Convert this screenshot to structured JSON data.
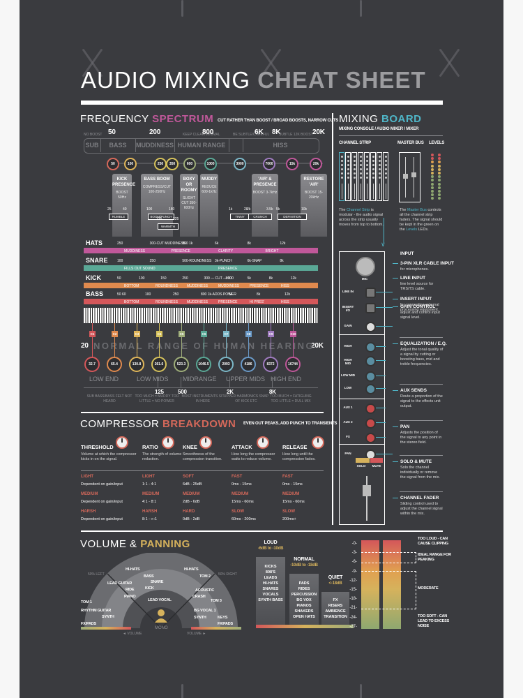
{
  "title": {
    "light": "AUDIO MIXING",
    "bold": "CHEAT SHEET"
  },
  "frequency_spectrum": {
    "title_light": "FREQUENCY",
    "title_bold": "SPECTRUM",
    "tagline": "CUT RATHER THAN BOOST  /  BROAD BOOSTS, NARROW CUTS",
    "top_markers": [
      {
        "note": "NO BOOST",
        "value": "50"
      },
      {
        "note": "",
        "value": "200"
      },
      {
        "note": "KEEP CLEAR/MINIMAL",
        "value": "800"
      },
      {
        "note": "BE SUBTLE/CAREFUL",
        "value": "6K"
      },
      {
        "note": "",
        "value": "8K"
      },
      {
        "note": "SUBTLE 12K BOOST",
        "value": "20K"
      }
    ],
    "ranges": [
      "SUB",
      "BASS",
      "MUDDINESS",
      "HUMAN RANGE",
      "",
      "HISS"
    ],
    "freq_circles": [
      {
        "label": "50",
        "color": "#d4685a"
      },
      {
        "label": "100",
        "color": "#e0b65a"
      },
      {
        "label": "250",
        "color": "#d6c25c"
      },
      {
        "label": "350",
        "color": "#d6c25c"
      },
      {
        "label": "600",
        "color": "#9fae7a"
      },
      {
        "label": "1000",
        "color": "#5aa896"
      },
      {
        "label": "3000",
        "color": "#7cb8c8"
      },
      {
        "label": "7000",
        "color": "#a07cc0"
      },
      {
        "label": "15k",
        "color": "#c0589a"
      },
      {
        "label": "20k",
        "color": "#c0589a"
      }
    ],
    "cards": [
      {
        "heading": "KICK PRESENCE",
        "desc": "BOOST 50Hz"
      },
      {
        "heading": "BASS BOOM",
        "desc": "COMPRESS/CUT 100-250Hz"
      },
      {
        "heading": "BOXY OR ROOMY",
        "desc": "SLIGHT CUT 350-600Hz"
      },
      {
        "heading": "MUDDY",
        "desc": "REDUCE 600-1kHz"
      },
      {
        "heading": "'AIR' & PRESENCE",
        "desc": "BOOST 3-7kHz"
      },
      {
        "heading": "RESTORE 'AIR'",
        "desc": "BOOST 15-20kHz"
      }
    ],
    "brackets": [
      {
        "label": "RUMBLE",
        "from": "25",
        "to": "40"
      },
      {
        "label": "BOOM/PUNCH",
        "from": "100",
        "to": "180"
      },
      {
        "label": "WARMTH",
        "from": "135",
        "to": "225"
      },
      {
        "label": "TINNY",
        "from": "1k",
        "to": "2k"
      },
      {
        "label": "CRUNCH",
        "from": "2k",
        "to": "3.5k"
      },
      {
        "label": "DEFINITION",
        "from": "5k",
        "to": "10k"
      }
    ],
    "instruments": [
      {
        "name": "HATS",
        "color": "#c0589a",
        "markers": [
          "250",
          "300-CUT MUDDINESS",
          "800 1k",
          "6k",
          "8k",
          "12k"
        ],
        "zones": [
          "MUDDINESS",
          "PRESENCE",
          "CLARITY",
          "BRIGHT"
        ]
      },
      {
        "name": "SNARE",
        "color": "#5aa896",
        "markers": [
          "100",
          "250",
          "500-ROUNDNESS",
          "3k-PUNCH",
          "6k-SNAP",
          "8k"
        ],
        "zones": [
          "FILLS OUT SOUND",
          "PRESENCE"
        ]
      },
      {
        "name": "KICK",
        "color": "#e08a4e",
        "markers": [
          "50",
          "100",
          "150",
          "250",
          "300 — CUT — 600",
          "800",
          "5k",
          "8k",
          "12k"
        ],
        "zones": [
          "BOTTOM",
          "ROUNDNESS",
          "MUDDINESS",
          "MUDDINESS",
          "PRESENCE",
          "HISS"
        ]
      },
      {
        "name": "BASS",
        "color": "#d4575a",
        "markers": [
          "50 60",
          "100",
          "250",
          "800 1k-ADDS POWER",
          "6k",
          "8k",
          "12k"
        ],
        "zones": [
          "BOTTOM",
          "ROUNDNESS",
          "MUDDINESS",
          "PRESENCE",
          "HI PRES'",
          "HISS"
        ]
      }
    ],
    "hearing": {
      "min": "20",
      "max": "20K",
      "label": "NORMAL RANGE OF HUMAN HEARING"
    },
    "notes": [
      {
        "note": "C1",
        "hz": "32.7",
        "color": "#d4575a"
      },
      {
        "note": "C2",
        "hz": "65.4",
        "color": "#e08a4e"
      },
      {
        "note": "C3",
        "hz": "130.8",
        "color": "#e0b65a"
      },
      {
        "note": "C4",
        "hz": "261.6",
        "color": "#d6c25c"
      },
      {
        "note": "C5",
        "hz": "523.3",
        "color": "#9fae7a"
      },
      {
        "note": "C6",
        "hz": "1046.5",
        "color": "#5aa896"
      },
      {
        "note": "C7",
        "hz": "2093",
        "color": "#7cb8c8"
      },
      {
        "note": "C8",
        "hz": "4186",
        "color": "#6a9ac8"
      },
      {
        "note": "C9",
        "hz": "8372",
        "color": "#a07cc0"
      },
      {
        "note": "C10",
        "hz": "16744",
        "color": "#c0589a"
      }
    ],
    "zones": [
      {
        "name": "LOW END",
        "desc": "SUB BASS/BASS FELT NOT HEARD"
      },
      {
        "name": "LOW MIDS",
        "desc": "TOO MUCH = MUDDY TOO LITTLE = NO POWER"
      },
      {
        "name": "MIDRANGE",
        "desc": "MOST INSTRUMENTS SIT IN HERE"
      },
      {
        "name": "UPPER MIDS",
        "desc": "UPPER HARMONICS SNAP OF KICK ETC"
      },
      {
        "name": "HIGH END",
        "desc": "TOO MUCH = FATIGUING TOO LITTLE = DULL MIX"
      }
    ],
    "zone_boundaries": [
      "125",
      "500",
      "2K",
      "8K"
    ]
  },
  "compressor": {
    "title_light": "COMPRESSOR",
    "title_bold": "BREAKDOWN",
    "tagline": "EVEN OUT PEAKS, ADD PUNCH TO TRANSIENTS",
    "params": [
      {
        "name": "THRESHOLD",
        "desc": "Volume at which the compressor kicks in on the signal.",
        "levels": [
          {
            "label": "LIGHT",
            "value": "Dependent on gain/input"
          },
          {
            "label": "MEDIUM",
            "value": "Dependent on gain/input"
          },
          {
            "label": "HARSH",
            "value": "Dependent on gain/input"
          }
        ]
      },
      {
        "name": "RATIO",
        "desc": "The strength of volume reduction.",
        "levels": [
          {
            "label": "LIGHT",
            "value": "1:1 - 4:1"
          },
          {
            "label": "MEDIUM",
            "value": "4:1 - 8:1"
          },
          {
            "label": "HARSH",
            "value": "8:1 - ∞:1"
          }
        ]
      },
      {
        "name": "KNEE",
        "desc": "Smoothness of the compression transition.",
        "levels": [
          {
            "label": "SOFT",
            "value": "6dB - 25dB"
          },
          {
            "label": "MEDIUM",
            "value": "2dB - 6dB"
          },
          {
            "label": "HARD",
            "value": "0dB - 2dB"
          }
        ]
      },
      {
        "name": "ATTACK",
        "desc": "How long the compressor waits to reduce volume.",
        "levels": [
          {
            "label": "FAST",
            "value": "0ms - 15ms"
          },
          {
            "label": "MEDIUM",
            "value": "15ms - 60ms"
          },
          {
            "label": "SLOW",
            "value": "60ms - 200ms"
          }
        ]
      },
      {
        "name": "RELEASE",
        "desc": "How long until the compression fades.",
        "levels": [
          {
            "label": "FAST",
            "value": "0ms - 15ms"
          },
          {
            "label": "MEDIUM",
            "value": "15ms - 60ms"
          },
          {
            "label": "SLOW",
            "value": "200ms+"
          }
        ]
      }
    ]
  },
  "volume_panning": {
    "title_light": "VOLUME &",
    "title_bold": "PANNING",
    "pan_labels": {
      "left": "50% LEFT",
      "right": "50% RIGHT",
      "mono": "MONO",
      "vol_left": "◄ VOLUME",
      "vol_right": "VOLUME ►"
    },
    "left_items": [
      "HI-HATS",
      "LEAD GUITAR",
      "RIDE",
      "PIANO",
      "TOM 1",
      "RHYTHM GUITAR",
      "SYNTH",
      "FX/PADS"
    ],
    "center_items": [
      "BASS",
      "SNARE",
      "KICK",
      "LEAD VOCAL"
    ],
    "right_items": [
      "HI-HATS",
      "TOM 2",
      "ACOUSTIC",
      "CRASH",
      "TOM 3",
      "BG VOCAL 1",
      "SYNTH",
      "KEYS",
      "FX/PADS"
    ],
    "levels": [
      {
        "name": "LOUD",
        "range": "-6dB to -10dB",
        "items": [
          "KICKS",
          "808'S",
          "LEADS",
          "HI-HATS",
          "SNARES",
          "VOCALS",
          "SYNTH BASS"
        ]
      },
      {
        "name": "NORMAL",
        "range": "-10dB to -18dB",
        "items": [
          "PADS",
          "RIDES",
          "PERCUSSION",
          "BG VOX",
          "PIANOS",
          "SHAKERS",
          "OPEN HATS"
        ]
      },
      {
        "name": "QUIET",
        "range": "<-18dB",
        "items": [
          "FX",
          "RISERS",
          "AMBIENCE",
          "TRANSITION"
        ]
      }
    ],
    "meter": {
      "ticks": [
        "-0-",
        "-3-",
        "-6-",
        "-9-",
        "-12-",
        "-15-",
        "-18-",
        "-21-",
        "-24-",
        "-27-"
      ],
      "notes": [
        {
          "label": "TOO LOUD - CAN CAUSE CLIPPING"
        },
        {
          "label": "IDEAL RANGE FOR PEAKING"
        },
        {
          "label": "MODERATE"
        },
        {
          "label": "TOO SOFT - CAN LEAD TO EXCESS NOISE"
        }
      ]
    }
  },
  "mixing_board": {
    "title_light": "MIXING",
    "title_bold": "BOARD",
    "subtitle": "MIXING CONSOLE / AUDIO MIXER / MIXER",
    "headers": {
      "channel_strip": "CHANNEL STRIP",
      "master_bus": "MASTER BUS",
      "levels": "LEVELS"
    },
    "channel_strip_desc": {
      "pre": "The",
      "hl": "Channel Strip",
      "post": "is modular - the audio signal across the strip usually moves from top to bottom."
    },
    "master_bus_desc": {
      "pre": "The",
      "hl": "Master Bus",
      "mid": "controls all the channel strip faders. The signal should be kept in the green on the",
      "hl2": "Levels",
      "post": "LEDs."
    },
    "strip_labels": [
      "MIC",
      "LINE IN",
      "INSERT I/O",
      "GAIN",
      "HIGH",
      "HIGH MID",
      "LOW MID",
      "LOW",
      "AUX 1",
      "AUX 2",
      "FX",
      "PAN",
      "SOLO",
      "MUTE"
    ],
    "sections": [
      {
        "heading": "INPUT",
        "items": []
      },
      {
        "heading": "3-PIN XLR CABLE INPUT",
        "desc": "for microphones."
      },
      {
        "heading": "LINE INPUT",
        "desc": "line level source for TRS/TS cable."
      },
      {
        "heading": "INSERT INPUT",
        "desc": "for connecting external processing equipment."
      },
      {
        "heading": "GAIN CONTROL",
        "desc": "adjust and control input signal level."
      },
      {
        "heading": "EQUALIZATION / E.Q.",
        "desc": "Adjust the tonal quality of a signal by cutting or boosting bass, mid and treble frequencies."
      },
      {
        "heading": "AUX SENDS",
        "desc": "Route a proportion of the signal to the effects unit output."
      },
      {
        "heading": "PAN",
        "desc": "Adjusts the position of the signal to any point in the stereo field."
      },
      {
        "heading": "SOLO & MUTE",
        "desc": "Solo the channel individually or remove the signal from the mix."
      },
      {
        "heading": "CHANNEL FADER",
        "desc": "Sliding control used to adjust the channel signal within the mix."
      }
    ]
  },
  "colors": {
    "background": "#3a3b3f",
    "page": "#f7f7f7",
    "spectrum_accent": "#c0589a",
    "compressor_accent": "#d4685a",
    "panning_accent": "#d6b25c",
    "board_accent": "#4fb6c8"
  }
}
